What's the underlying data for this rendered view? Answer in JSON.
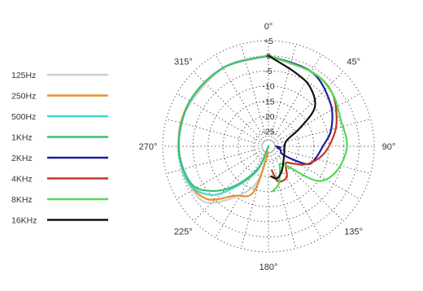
{
  "chart_data": {
    "type": "polar-line",
    "title": "",
    "radial_axis": {
      "unit": "dB",
      "min": -30,
      "max": 5,
      "tick_values": [
        5,
        0,
        -5,
        -10,
        -15,
        -20,
        -25
      ],
      "tick_labels": [
        "+5",
        "0",
        "-5",
        "-10",
        "-15",
        "-20",
        "-25"
      ]
    },
    "angular_axis": {
      "direction": "clockwise",
      "zero_at": "top",
      "tick_values": [
        0,
        45,
        90,
        135,
        180,
        225,
        270,
        315
      ],
      "tick_labels": [
        "0°",
        "45°",
        "90°",
        "135°",
        "180°",
        "225°",
        "270°",
        "315°"
      ]
    },
    "grid": "dotted",
    "legend_position": "left",
    "series": [
      {
        "name": "125Hz",
        "color": "#cfcfcf",
        "side": "left",
        "points": [
          [
            180,
            -30
          ],
          [
            200,
            -16
          ],
          [
            225,
            -3.5
          ],
          [
            240,
            -1
          ],
          [
            260,
            -0.3
          ],
          [
            290,
            0
          ],
          [
            330,
            0
          ],
          [
            360,
            0
          ]
        ]
      },
      {
        "name": "250Hz",
        "color": "#e8912f",
        "side": "left",
        "points": [
          [
            180,
            -28
          ],
          [
            198,
            -14
          ],
          [
            215,
            -10
          ],
          [
            230,
            -3
          ],
          [
            250,
            -0.8
          ],
          [
            275,
            -0.2
          ],
          [
            300,
            0
          ],
          [
            330,
            0
          ],
          [
            360,
            0
          ]
        ]
      },
      {
        "name": "500Hz",
        "color": "#3fd8cc",
        "side": "left",
        "points": [
          [
            180,
            -30
          ],
          [
            205,
            -21
          ],
          [
            220,
            -12
          ],
          [
            230,
            -5
          ],
          [
            245,
            -1
          ],
          [
            270,
            -0.2
          ],
          [
            300,
            0
          ],
          [
            330,
            0
          ],
          [
            360,
            0
          ]
        ]
      },
      {
        "name": "1KHz",
        "color": "#3fbf6f",
        "side": "left",
        "points": [
          [
            180,
            -30
          ],
          [
            205,
            -22
          ],
          [
            220,
            -13
          ],
          [
            232,
            -6
          ],
          [
            245,
            -1.5
          ],
          [
            270,
            -0.3
          ],
          [
            300,
            0
          ],
          [
            330,
            0
          ],
          [
            360,
            0
          ]
        ]
      },
      {
        "name": "2KHz",
        "color": "#1f1f9a",
        "side": "right",
        "points": [
          [
            0,
            0
          ],
          [
            30,
            -1.5
          ],
          [
            55,
            -5
          ],
          [
            75,
            -8.5
          ],
          [
            90,
            -12
          ],
          [
            105,
            -14
          ],
          [
            115,
            -16
          ],
          [
            120,
            -24
          ],
          [
            105,
            -26
          ],
          [
            100,
            -27
          ],
          [
            95,
            -26
          ],
          [
            90,
            -27.5
          ]
        ]
      },
      {
        "name": "4KHz",
        "color": "#c0392b",
        "side": "right",
        "points": [
          [
            0,
            0
          ],
          [
            30,
            -1.5
          ],
          [
            50,
            -2.5
          ],
          [
            70,
            -6
          ],
          [
            85,
            -9
          ],
          [
            100,
            -12
          ],
          [
            115,
            -16
          ],
          [
            125,
            -20
          ],
          [
            132,
            -22
          ],
          [
            140,
            -21
          ],
          [
            150,
            -18
          ],
          [
            165,
            -18
          ],
          [
            172,
            -22
          ]
        ]
      },
      {
        "name": "8KHz",
        "color": "#4fdb55",
        "side": "right",
        "points": [
          [
            0,
            0
          ],
          [
            30,
            -1.5
          ],
          [
            50,
            -2.5
          ],
          [
            70,
            -4.5
          ],
          [
            90,
            -4
          ],
          [
            110,
            -6
          ],
          [
            125,
            -10
          ],
          [
            135,
            -20
          ],
          [
            145,
            -23
          ],
          [
            155,
            -21
          ],
          [
            165,
            -17
          ],
          [
            175,
            -15
          ]
        ]
      },
      {
        "name": "16KHz",
        "color": "#111111",
        "side": "right",
        "points": [
          [
            0,
            0
          ],
          [
            20,
            -4
          ],
          [
            35,
            -6
          ],
          [
            50,
            -10
          ],
          [
            60,
            -18
          ],
          [
            75,
            -24
          ],
          [
            120,
            -24
          ],
          [
            150,
            -21
          ],
          [
            165,
            -19
          ],
          [
            175,
            -20
          ]
        ]
      }
    ]
  }
}
